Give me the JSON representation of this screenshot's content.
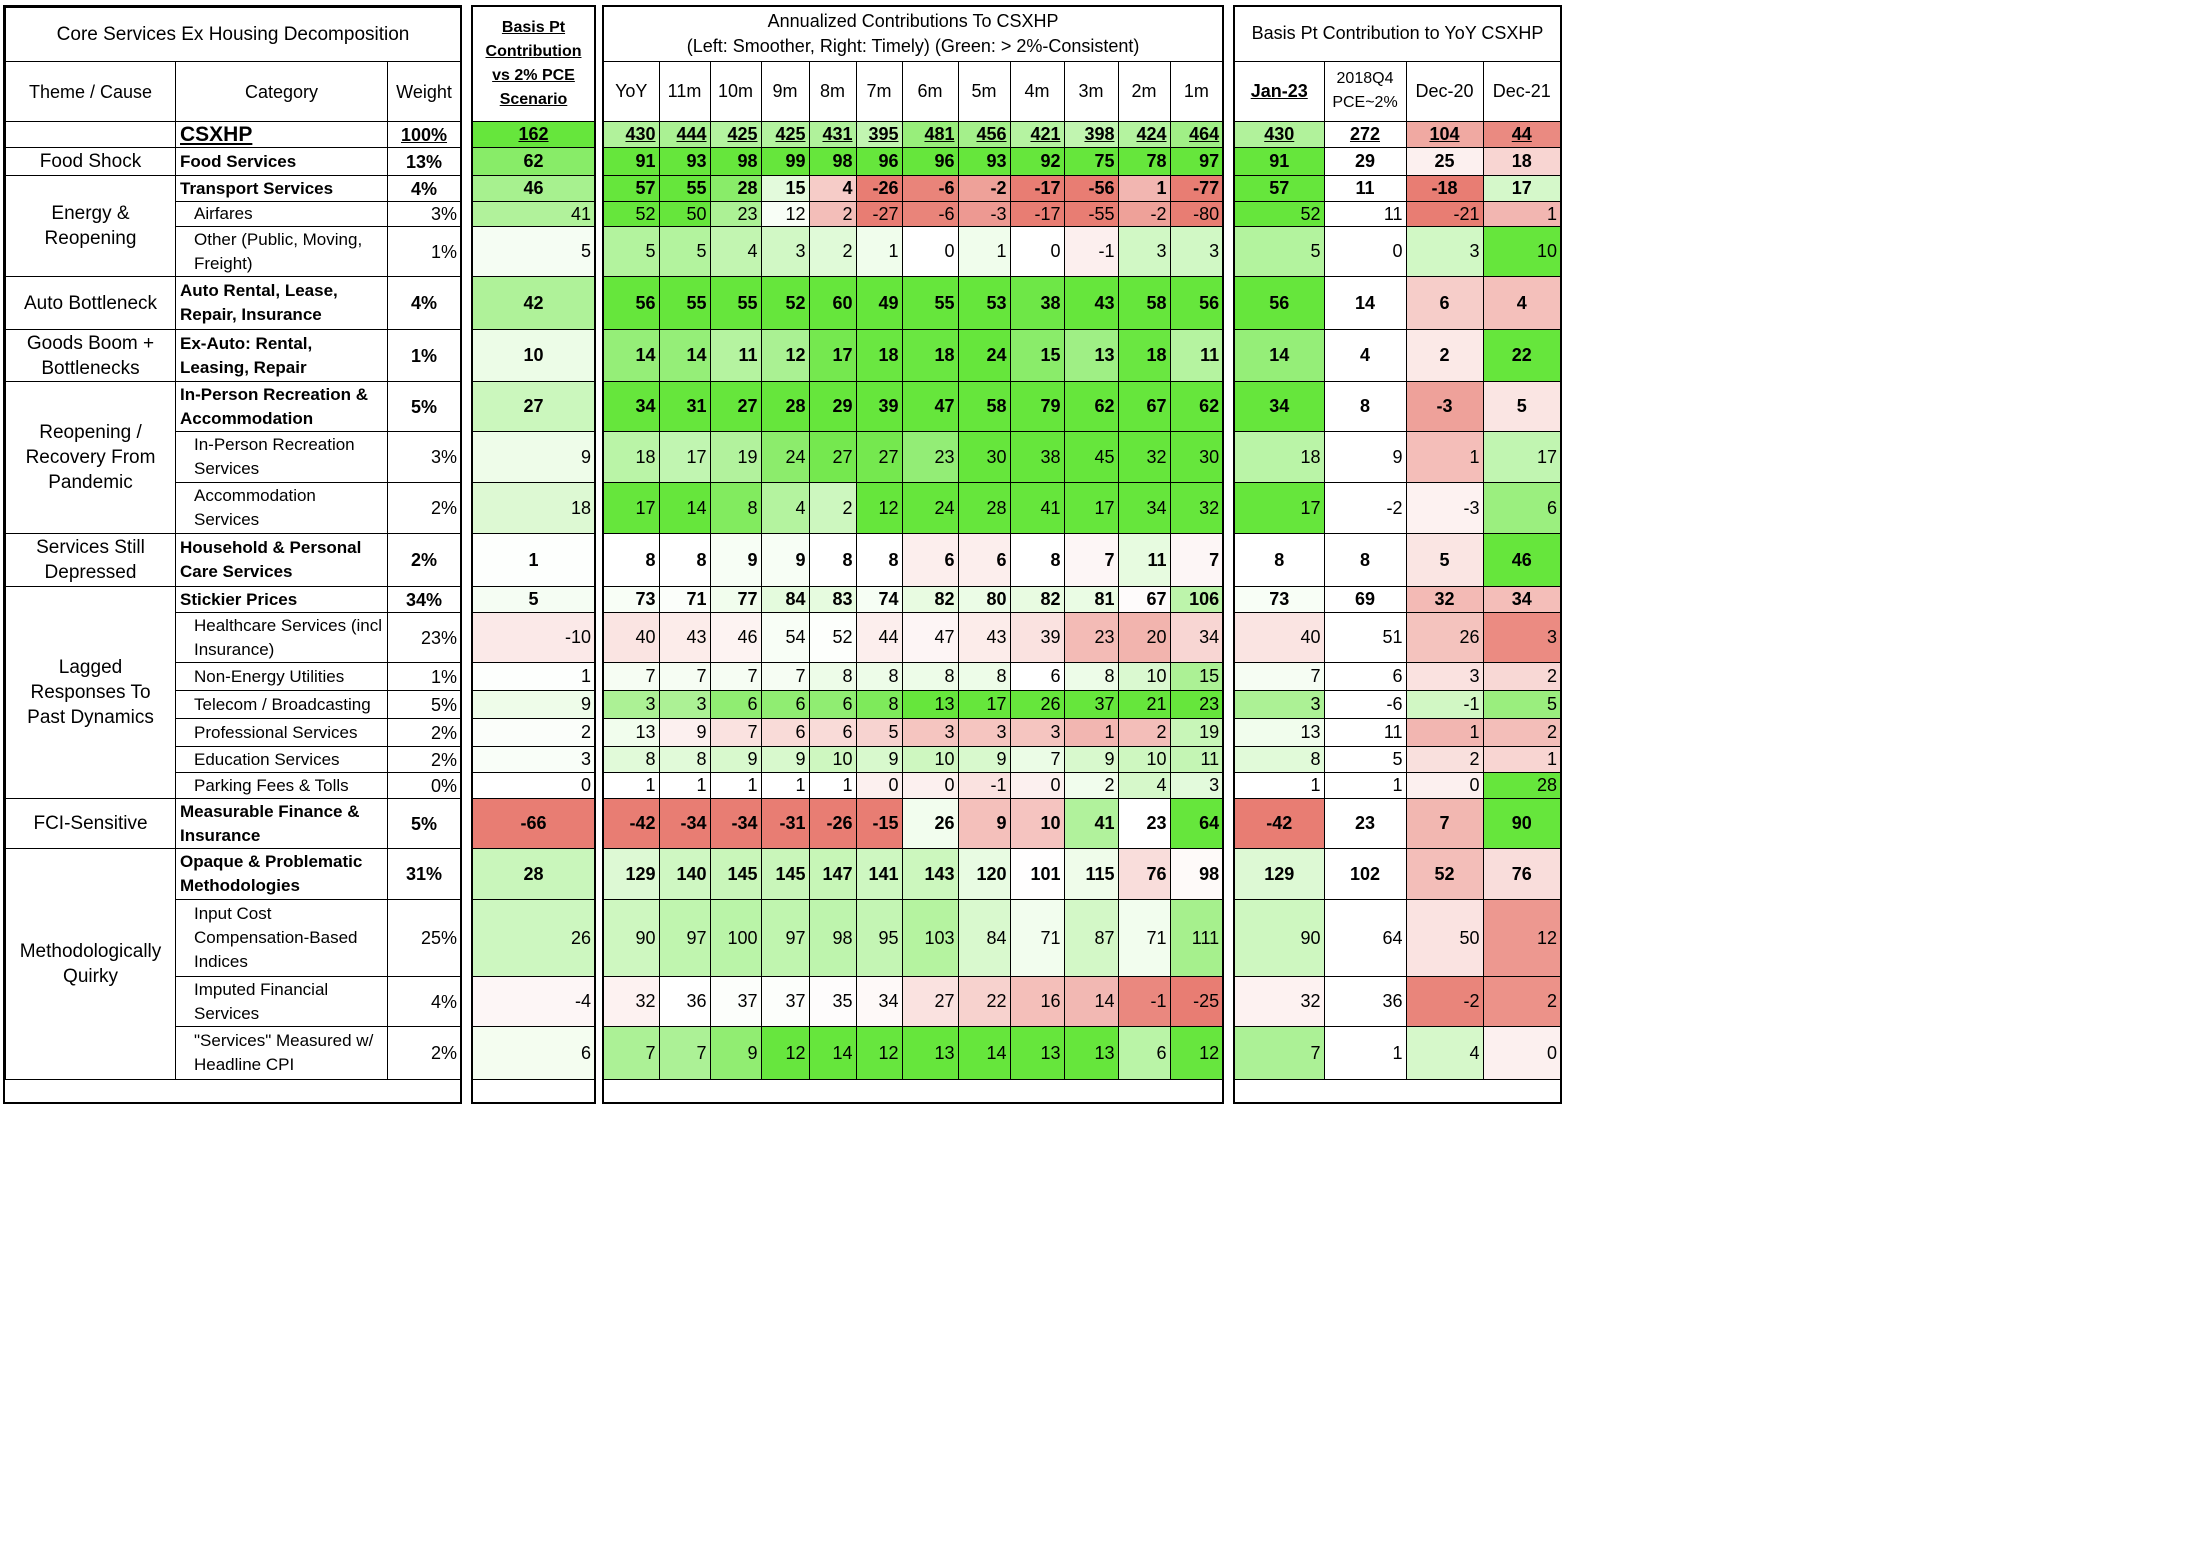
{
  "titles": {
    "panel1": "Core Services Ex Housing Decomposition",
    "panel2": "Basis Pt Contribution vs 2% PCE Scenario",
    "panel3_line1": "Annualized Contributions To CSXHP",
    "panel3_line2": "(Left: Smoother, Right: Timely) (Green: > 2%-Consistent)",
    "panel4": "Basis Pt Contribution to YoY CSXHP"
  },
  "headers": {
    "theme": "Theme / Cause",
    "category": "Category",
    "weight": "Weight",
    "annualized": [
      "YoY",
      "11m",
      "10m",
      "9m",
      "8m",
      "7m",
      "6m",
      "5m",
      "4m",
      "3m",
      "2m",
      "1m"
    ],
    "yoy": [
      "Jan-23",
      "2018Q4 PCE~2%",
      "Dec-20",
      "Dec-21"
    ]
  },
  "themes": [
    {
      "label": "",
      "rows": 1
    },
    {
      "label": "Food Shock",
      "rows": 1
    },
    {
      "label": "Energy & Reopening",
      "rows": 3
    },
    {
      "label": "Auto Bottleneck",
      "rows": 1
    },
    {
      "label": "Goods Boom + Bottlenecks",
      "rows": 1
    },
    {
      "label": "Reopening / Recovery From Pandemic",
      "rows": 3
    },
    {
      "label": "Services Still Depressed",
      "rows": 1
    },
    {
      "label": "Lagged Responses To Past Dynamics",
      "rows": 7
    },
    {
      "label": "FCI-Sensitive",
      "rows": 1
    },
    {
      "label": "Methodologically Quirky",
      "rows": 4
    }
  ],
  "chart_data": {
    "type": "table",
    "title": "Core Services Ex Housing Decomposition",
    "rows": [
      {
        "category": "CSXHP",
        "weight": "100%",
        "bp_vs_2pct": 162,
        "annualized": [
          430,
          444,
          425,
          425,
          431,
          395,
          481,
          456,
          421,
          398,
          424,
          464
        ],
        "yoy": [
          430,
          272,
          104,
          44
        ]
      },
      {
        "category": "Food Services",
        "weight": "13%",
        "bp_vs_2pct": 62,
        "annualized": [
          91,
          93,
          98,
          99,
          98,
          96,
          96,
          93,
          92,
          75,
          78,
          97
        ],
        "yoy": [
          91,
          29,
          25,
          18
        ]
      },
      {
        "category": "Transport Services",
        "weight": "4%",
        "bp_vs_2pct": 46,
        "annualized": [
          57,
          55,
          28,
          15,
          4,
          -26,
          -6,
          -2,
          -17,
          -56,
          1,
          -77
        ],
        "yoy": [
          57,
          11,
          -18,
          17
        ]
      },
      {
        "category": "Airfares",
        "weight": "3%",
        "bp_vs_2pct": 41,
        "annualized": [
          52,
          50,
          23,
          12,
          2,
          -27,
          -6,
          -3,
          -17,
          -55,
          -2,
          -80
        ],
        "yoy": [
          52,
          11,
          -21,
          1
        ]
      },
      {
        "category": "Other (Public, Moving, Freight)",
        "weight": "1%",
        "bp_vs_2pct": 5,
        "annualized": [
          5,
          5,
          4,
          3,
          2,
          1,
          0,
          1,
          0,
          -1,
          3,
          3
        ],
        "yoy": [
          5,
          0,
          3,
          10
        ]
      },
      {
        "category": "Auto Rental, Lease, Repair, Insurance",
        "weight": "4%",
        "bp_vs_2pct": 42,
        "annualized": [
          56,
          55,
          55,
          52,
          60,
          49,
          55,
          53,
          38,
          43,
          58,
          56
        ],
        "yoy": [
          56,
          14,
          6,
          4
        ]
      },
      {
        "category": "Ex-Auto: Rental, Leasing, Repair",
        "weight": "1%",
        "bp_vs_2pct": 10,
        "annualized": [
          14,
          14,
          11,
          12,
          17,
          18,
          18,
          24,
          15,
          13,
          18,
          11
        ],
        "yoy": [
          14,
          4,
          2,
          22
        ]
      },
      {
        "category": "In-Person Recreation & Accommodation",
        "weight": "5%",
        "bp_vs_2pct": 27,
        "annualized": [
          34,
          31,
          27,
          28,
          29,
          39,
          47,
          58,
          79,
          62,
          67,
          62
        ],
        "yoy": [
          34,
          8,
          -3,
          5
        ]
      },
      {
        "category": "In-Person Recreation Services",
        "weight": "3%",
        "bp_vs_2pct": 9,
        "annualized": [
          18,
          17,
          19,
          24,
          27,
          27,
          23,
          30,
          38,
          45,
          32,
          30
        ],
        "yoy": [
          18,
          9,
          1,
          17
        ]
      },
      {
        "category": "Accommodation Services",
        "weight": "2%",
        "bp_vs_2pct": 18,
        "annualized": [
          17,
          14,
          8,
          4,
          2,
          12,
          24,
          28,
          41,
          17,
          34,
          32
        ],
        "yoy": [
          17,
          -2,
          -3,
          6
        ]
      },
      {
        "category": "Household & Personal Care Services",
        "weight": "2%",
        "bp_vs_2pct": 1,
        "annualized": [
          8,
          8,
          9,
          9,
          8,
          8,
          6,
          6,
          8,
          7,
          11,
          7
        ],
        "yoy": [
          8,
          8,
          5,
          46
        ]
      },
      {
        "category": "Stickier Prices",
        "weight": "34%",
        "bp_vs_2pct": 5,
        "annualized": [
          73,
          71,
          77,
          84,
          83,
          74,
          82,
          80,
          82,
          81,
          67,
          106
        ],
        "yoy": [
          73,
          69,
          32,
          34
        ]
      },
      {
        "category": "Healthcare Services (incl Insurance)",
        "weight": "23%",
        "bp_vs_2pct": -10,
        "annualized": [
          40,
          43,
          46,
          54,
          52,
          44,
          47,
          43,
          39,
          23,
          20,
          34
        ],
        "yoy": [
          40,
          51,
          26,
          3
        ]
      },
      {
        "category": "Non-Energy Utilities",
        "weight": "1%",
        "bp_vs_2pct": 1,
        "annualized": [
          7,
          7,
          7,
          7,
          8,
          8,
          8,
          8,
          6,
          8,
          10,
          15
        ],
        "yoy": [
          7,
          6,
          3,
          2
        ]
      },
      {
        "category": "Telecom / Broadcasting",
        "weight": "5%",
        "bp_vs_2pct": 9,
        "annualized": [
          3,
          3,
          6,
          6,
          6,
          8,
          13,
          17,
          26,
          37,
          21,
          23
        ],
        "yoy": [
          3,
          -6,
          -1,
          5
        ]
      },
      {
        "category": "Professional Services",
        "weight": "2%",
        "bp_vs_2pct": 2,
        "annualized": [
          13,
          9,
          7,
          6,
          6,
          5,
          3,
          3,
          3,
          1,
          2,
          19
        ],
        "yoy": [
          13,
          11,
          1,
          2
        ]
      },
      {
        "category": "Education Services",
        "weight": "2%",
        "bp_vs_2pct": 3,
        "annualized": [
          8,
          8,
          9,
          9,
          10,
          9,
          10,
          9,
          7,
          9,
          10,
          11
        ],
        "yoy": [
          8,
          5,
          2,
          1
        ]
      },
      {
        "category": "Parking Fees & Tolls",
        "weight": "0%",
        "bp_vs_2pct": 0,
        "annualized": [
          1,
          1,
          1,
          1,
          1,
          0,
          0,
          -1,
          0,
          2,
          4,
          3
        ],
        "yoy": [
          1,
          1,
          0,
          28
        ]
      },
      {
        "category": "Measurable Finance & Insurance",
        "weight": "5%",
        "bp_vs_2pct": -66,
        "annualized": [
          -42,
          -34,
          -34,
          -31,
          -26,
          -15,
          26,
          9,
          10,
          41,
          23,
          64
        ],
        "yoy": [
          -42,
          23,
          7,
          90
        ]
      },
      {
        "category": "Opaque & Problematic Methodologies",
        "weight": "31%",
        "bp_vs_2pct": 28,
        "annualized": [
          129,
          140,
          145,
          145,
          147,
          141,
          143,
          120,
          101,
          115,
          76,
          98
        ],
        "yoy": [
          129,
          102,
          52,
          76
        ]
      },
      {
        "category": "Input Cost Compensation-Based Indices",
        "weight": "25%",
        "bp_vs_2pct": 26,
        "annualized": [
          90,
          97,
          100,
          97,
          98,
          95,
          103,
          84,
          71,
          87,
          71,
          111
        ],
        "yoy": [
          90,
          64,
          50,
          12
        ]
      },
      {
        "category": "Imputed Financial Services",
        "weight": "4%",
        "bp_vs_2pct": -4,
        "annualized": [
          32,
          36,
          37,
          37,
          35,
          34,
          27,
          22,
          16,
          14,
          -1,
          -25
        ],
        "yoy": [
          32,
          36,
          -2,
          2
        ]
      },
      {
        "category": "\"Services\" Measured w/ Headline CPI",
        "weight": "2%",
        "bp_vs_2pct": 6,
        "annualized": [
          7,
          7,
          9,
          12,
          14,
          12,
          13,
          14,
          13,
          13,
          6,
          12
        ],
        "yoy": [
          7,
          1,
          4,
          0
        ]
      }
    ]
  }
}
